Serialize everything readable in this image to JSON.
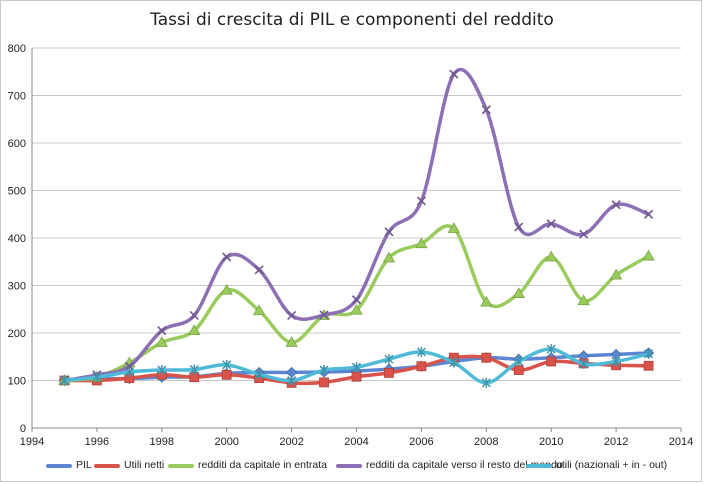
{
  "chart_data": {
    "type": "line",
    "title": "Tassi di crescita di PIL e componenti del reddito",
    "xlabel": "",
    "ylabel": "",
    "xlim": [
      1994,
      2014
    ],
    "ylim": [
      0,
      800
    ],
    "x_ticks": [
      "1994",
      "1996",
      "1998",
      "2000",
      "2002",
      "2004",
      "2006",
      "2008",
      "2010",
      "2012",
      "2014"
    ],
    "y_ticks": [
      "0",
      "100",
      "200",
      "300",
      "400",
      "500",
      "600",
      "700",
      "800"
    ],
    "grid": "horizontal",
    "legend_position": "bottom",
    "x": [
      1995,
      1996,
      1997,
      1998,
      1999,
      2000,
      2001,
      2002,
      2003,
      2004,
      2005,
      2006,
      2007,
      2008,
      2009,
      2010,
      2011,
      2012,
      2013
    ],
    "series": [
      {
        "name": "PIL",
        "color": "#5b87d2",
        "marker": "diamond",
        "values": [
          100,
          104,
          104,
          107,
          108,
          115,
          117,
          117,
          118,
          120,
          124,
          130,
          140,
          148,
          145,
          148,
          152,
          155,
          158
        ]
      },
      {
        "name": "Utili netti",
        "color": "#d9534a",
        "marker": "square",
        "values": [
          100,
          100,
          105,
          112,
          107,
          112,
          105,
          95,
          96,
          108,
          116,
          130,
          148,
          148,
          122,
          140,
          136,
          132,
          131
        ]
      },
      {
        "name": "redditi da capitale in entrata",
        "color": "#99cc5c",
        "marker": "triangle",
        "values": [
          100,
          107,
          137,
          180,
          205,
          290,
          247,
          180,
          237,
          248,
          358,
          388,
          420,
          265,
          283,
          360,
          268,
          322,
          362
        ]
      },
      {
        "name": "redditi da capitale verso il resto del mondo",
        "color": "#8c6fb5",
        "marker": "x",
        "values": [
          100,
          112,
          130,
          205,
          237,
          360,
          333,
          237,
          238,
          270,
          413,
          478,
          745,
          670,
          423,
          430,
          408,
          470,
          450
        ]
      },
      {
        "name": "utili (nazionali + in - out)",
        "color": "#4fbad7",
        "marker": "star",
        "values": [
          100,
          107,
          118,
          122,
          123,
          133,
          113,
          100,
          122,
          128,
          145,
          160,
          138,
          95,
          140,
          166,
          135,
          140,
          156
        ]
      }
    ]
  }
}
